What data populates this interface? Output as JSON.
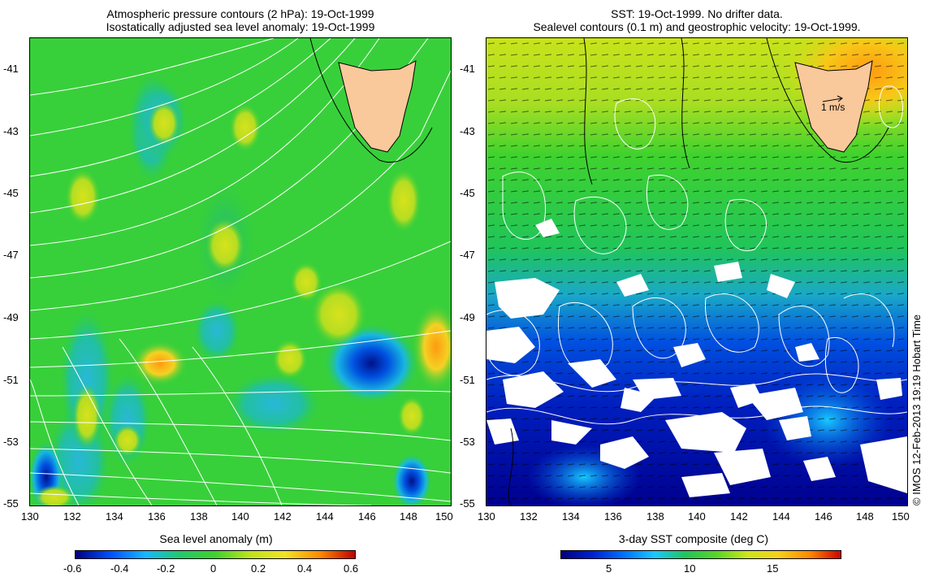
{
  "left_panel": {
    "title_line1": "Atmospheric pressure contours (2 hPa): 19-Oct-1999",
    "title_line2": "Isostatically adjusted sea level anomaly: 19-Oct-1999",
    "colorbar_label": "Sea level anomaly (m)",
    "colorbar_ticks": [
      "-0.6",
      "-0.4",
      "-0.2",
      "0",
      "0.2",
      "0.4",
      "0.6"
    ],
    "colormap": [
      "#00007f",
      "#0050ff",
      "#16b8ff",
      "#21c96a",
      "#3fd22e",
      "#bfe41b",
      "#f2e324",
      "#ff8a00",
      "#c00000"
    ]
  },
  "right_panel": {
    "title_line1": "SST: 19-Oct-1999. No drifter data.",
    "title_line2": "Sealevel contours (0.1 m) and geostrophic velocity: 19-Oct-1999.",
    "velocity_scale_label": "1 m/s",
    "colorbar_label": "3-day SST composite (deg C)",
    "colorbar_ticks": [
      "5",
      "10",
      "15"
    ],
    "colormap": [
      "#00007f",
      "#0020d0",
      "#0070ff",
      "#18c8ff",
      "#20c55a",
      "#58d628",
      "#cde61b",
      "#f7d11a",
      "#ff8a00",
      "#d00000"
    ]
  },
  "axes": {
    "x_ticks": [
      "130",
      "132",
      "134",
      "136",
      "138",
      "140",
      "142",
      "144",
      "146",
      "148",
      "150"
    ],
    "y_ticks": [
      "-41",
      "-43",
      "-45",
      "-47",
      "-49",
      "-51",
      "-53",
      "-55"
    ]
  },
  "land": {
    "name": "Tasmania",
    "color": "#f9c89b"
  },
  "copyright": "© IMOS 12-Feb-2013 19:19 Hobart Time"
}
